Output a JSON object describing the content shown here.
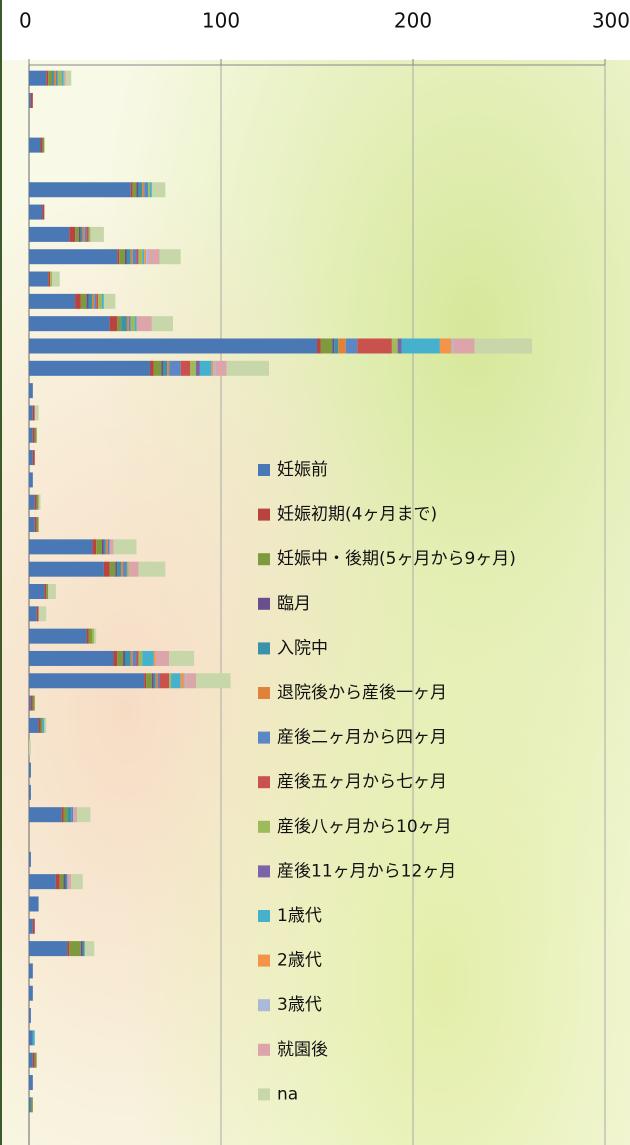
{
  "chart_data": {
    "type": "stacked-barh",
    "categories": [
      null,
      null,
      null,
      null,
      null,
      null,
      null,
      null,
      null,
      null,
      null,
      null,
      null,
      null,
      null,
      null,
      null,
      null,
      null,
      null,
      null,
      null,
      null,
      null,
      null,
      null,
      null,
      null,
      null,
      null,
      null,
      null,
      null,
      null,
      null,
      null,
      null,
      null,
      null,
      null,
      null,
      null,
      null,
      null,
      null,
      null,
      null
    ],
    "xlim": [
      0,
      300
    ],
    "xticks": [
      0,
      100,
      200,
      300
    ],
    "grid": true,
    "legend": "right",
    "series": [
      {
        "name": "妊娠前",
        "color": "#4a78b5",
        "values": [
          9,
          1,
          0,
          6,
          0,
          53,
          7,
          21,
          46,
          10,
          24,
          42,
          150,
          63,
          2,
          2,
          2,
          2,
          2,
          3,
          3,
          33,
          39,
          8,
          4,
          30,
          44,
          60,
          1,
          5,
          0,
          1,
          1,
          17,
          0,
          1,
          14,
          5,
          2,
          20,
          2,
          2,
          1,
          2,
          2,
          2,
          1
        ]
      },
      {
        "name": "妊娠初期(4ヶ月まで)",
        "color": "#b8433f",
        "values": [
          1,
          1,
          0,
          1,
          0,
          1,
          1,
          3,
          1,
          1,
          3,
          4,
          2,
          2,
          0,
          1,
          1,
          1,
          0,
          1,
          1,
          2,
          3,
          1,
          1,
          1,
          2,
          1,
          1,
          1,
          0,
          0,
          0,
          1,
          0,
          0,
          2,
          0,
          1,
          1,
          0,
          0,
          0,
          0,
          1,
          0,
          0
        ]
      },
      {
        "name": "妊娠中・後期(5ヶ月から9ヶ月)",
        "color": "#7f9a3e",
        "values": [
          2,
          0,
          0,
          1,
          0,
          2,
          0,
          2,
          3,
          0,
          3,
          2,
          6,
          4,
          0,
          0,
          1,
          0,
          0,
          1,
          1,
          3,
          3,
          1,
          0,
          2,
          3,
          3,
          1,
          1,
          0,
          0,
          0,
          2,
          0,
          0,
          2,
          0,
          0,
          6,
          0,
          0,
          0,
          0,
          1,
          0,
          1
        ]
      },
      {
        "name": "臨月",
        "color": "#6a4f8f",
        "values": [
          0,
          0,
          0,
          0,
          0,
          1,
          0,
          1,
          1,
          0,
          1,
          0,
          1,
          1,
          0,
          0,
          0,
          0,
          0,
          0,
          0,
          1,
          1,
          0,
          0,
          0,
          1,
          1,
          0,
          0,
          0,
          0,
          0,
          0,
          0,
          0,
          1,
          0,
          0,
          1,
          0,
          0,
          0,
          0,
          0,
          0,
          0
        ]
      },
      {
        "name": "入院中",
        "color": "#3a93ab",
        "values": [
          1,
          0,
          0,
          0,
          0,
          2,
          0,
          1,
          2,
          0,
          2,
          3,
          2,
          2,
          0,
          0,
          0,
          0,
          0,
          0,
          0,
          1,
          2,
          0,
          0,
          0,
          3,
          1,
          0,
          0,
          0,
          0,
          0,
          2,
          0,
          0,
          1,
          0,
          0,
          1,
          0,
          0,
          0,
          0,
          0,
          0,
          0
        ]
      },
      {
        "name": "退院後から産後一ヶ月",
        "color": "#e0823a",
        "values": [
          1,
          0,
          0,
          0,
          0,
          1,
          0,
          1,
          1,
          0,
          1,
          1,
          4,
          1,
          0,
          0,
          0,
          0,
          0,
          0,
          0,
          1,
          1,
          0,
          0,
          0,
          1,
          1,
          0,
          0,
          0,
          0,
          0,
          0,
          0,
          0,
          0,
          0,
          0,
          0,
          0,
          0,
          0,
          0,
          0,
          0,
          0
        ]
      },
      {
        "name": "産後二ヶ月から四ヶ月",
        "color": "#5b87c6",
        "values": [
          1,
          0,
          0,
          0,
          0,
          2,
          0,
          1,
          2,
          0,
          1,
          1,
          6,
          6,
          0,
          0,
          0,
          0,
          0,
          0,
          0,
          1,
          2,
          0,
          0,
          0,
          2,
          1,
          0,
          0,
          0,
          0,
          0,
          1,
          0,
          0,
          0,
          0,
          0,
          0,
          0,
          0,
          0,
          0,
          0,
          0,
          0
        ]
      },
      {
        "name": "産後五ヶ月から七ヶ月",
        "color": "#c9514e",
        "values": [
          0,
          0,
          0,
          0,
          0,
          0,
          0,
          1,
          1,
          0,
          1,
          0,
          18,
          5,
          0,
          0,
          0,
          0,
          0,
          0,
          0,
          0,
          0,
          0,
          0,
          0,
          1,
          5,
          0,
          0,
          0,
          0,
          0,
          0,
          0,
          0,
          0,
          0,
          0,
          0,
          0,
          0,
          0,
          0,
          0,
          0,
          0
        ]
      },
      {
        "name": "産後八ヶ月から10ヶ月",
        "color": "#9dbb5a",
        "values": [
          2,
          0,
          0,
          0,
          0,
          1,
          0,
          1,
          2,
          1,
          2,
          2,
          3,
          3,
          0,
          0,
          0,
          0,
          0,
          0,
          0,
          0,
          1,
          0,
          0,
          1,
          2,
          1,
          0,
          0,
          0,
          0,
          0,
          0,
          0,
          0,
          0,
          0,
          0,
          0,
          0,
          0,
          0,
          0,
          0,
          0,
          0
        ]
      },
      {
        "name": "産後11ヶ月から12ヶ月",
        "color": "#7d64a8",
        "values": [
          0,
          0,
          0,
          0,
          0,
          0,
          0,
          0,
          0,
          0,
          0,
          0,
          2,
          2,
          0,
          0,
          0,
          0,
          0,
          0,
          0,
          0,
          0,
          0,
          0,
          0,
          0,
          0,
          0,
          0,
          0,
          0,
          0,
          0,
          0,
          0,
          0,
          0,
          0,
          0,
          0,
          0,
          0,
          0,
          0,
          0,
          0
        ]
      },
      {
        "name": "1歳代",
        "color": "#46b1cc",
        "values": [
          1,
          0,
          0,
          0,
          0,
          1,
          0,
          0,
          1,
          0,
          1,
          1,
          20,
          6,
          0,
          0,
          0,
          0,
          0,
          0,
          0,
          0,
          0,
          0,
          0,
          0,
          6,
          5,
          0,
          1,
          0,
          0,
          0,
          0,
          0,
          0,
          0,
          0,
          0,
          0,
          0,
          0,
          0,
          1,
          0,
          0,
          0
        ]
      },
      {
        "name": "2歳代",
        "color": "#f4944a",
        "values": [
          0,
          0,
          0,
          0,
          0,
          0,
          0,
          0,
          1,
          0,
          0,
          0,
          6,
          1,
          0,
          0,
          0,
          0,
          0,
          0,
          0,
          0,
          0,
          0,
          0,
          0,
          1,
          2,
          0,
          0,
          0,
          0,
          0,
          0,
          0,
          0,
          0,
          0,
          0,
          0,
          0,
          0,
          0,
          0,
          0,
          0,
          0
        ]
      },
      {
        "name": "3歳代",
        "color": "#aab9d8",
        "values": [
          0,
          0,
          0,
          0,
          0,
          0,
          0,
          0,
          1,
          0,
          0,
          0,
          1,
          1,
          0,
          0,
          0,
          0,
          0,
          0,
          0,
          0,
          0,
          0,
          0,
          0,
          0,
          1,
          0,
          0,
          0,
          0,
          0,
          0,
          0,
          0,
          0,
          0,
          0,
          0,
          0,
          0,
          0,
          0,
          0,
          0,
          0
        ]
      },
      {
        "name": "就園後",
        "color": "#dba5aa",
        "values": [
          1,
          0,
          0,
          0,
          0,
          0,
          0,
          0,
          6,
          0,
          0,
          8,
          11,
          6,
          0,
          0,
          0,
          0,
          0,
          0,
          0,
          2,
          5,
          0,
          0,
          0,
          7,
          5,
          0,
          0,
          0,
          0,
          0,
          2,
          0,
          0,
          2,
          0,
          0,
          0,
          0,
          0,
          0,
          0,
          0,
          0,
          0
        ]
      },
      {
        "name": "na",
        "color": "#c7d7a9",
        "values": [
          3,
          0,
          0,
          0,
          0,
          7,
          0,
          7,
          11,
          4,
          6,
          11,
          30,
          22,
          0,
          2,
          0,
          0,
          0,
          1,
          0,
          12,
          14,
          4,
          4,
          1,
          13,
          18,
          0,
          1,
          1,
          0,
          0,
          7,
          0,
          0,
          6,
          0,
          0,
          5,
          0,
          0,
          0,
          0,
          0,
          0,
          0
        ]
      }
    ]
  }
}
